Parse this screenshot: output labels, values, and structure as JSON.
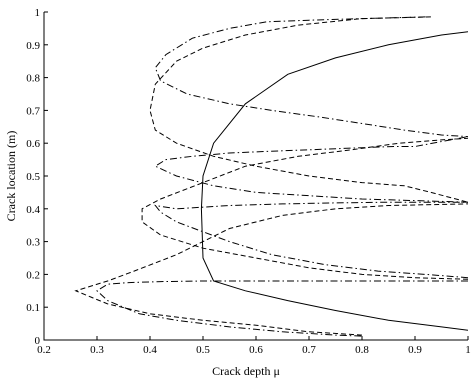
{
  "chart_data": {
    "type": "line",
    "xlabel": "Crack depth  μ",
    "ylabel": "Crack location (m)",
    "xlim": [
      0.2,
      1.0
    ],
    "ylim": [
      0,
      1.0
    ],
    "xticks": [
      "0.2",
      "0.3",
      "0.4",
      "0.5",
      "0.6",
      "0.7",
      "0.8",
      "0.9",
      "1"
    ],
    "xtick_values": [
      0.2,
      0.3,
      0.4,
      0.5,
      0.6,
      0.7,
      0.8,
      0.9,
      1.0
    ],
    "yticks": [
      "0",
      "0.1",
      "0.2",
      "0.3",
      "0.4",
      "0.5",
      "0.6",
      "0.7",
      "0.8",
      "0.9",
      "1"
    ],
    "ytick_values": [
      0,
      0.1,
      0.2,
      0.3,
      0.4,
      0.5,
      0.6,
      0.7,
      0.8,
      0.9,
      1.0
    ],
    "grid": false,
    "legend": "none",
    "series": [
      {
        "style": "solid",
        "points": [
          [
            1.0,
            0.03
          ],
          [
            0.95,
            0.04
          ],
          [
            0.85,
            0.06
          ],
          [
            0.75,
            0.09
          ],
          [
            0.66,
            0.12
          ],
          [
            0.58,
            0.15
          ],
          [
            0.52,
            0.18
          ],
          [
            0.5,
            0.25
          ],
          [
            0.497,
            0.4
          ],
          [
            0.5,
            0.5
          ],
          [
            0.52,
            0.6
          ],
          [
            0.58,
            0.72
          ],
          [
            0.66,
            0.81
          ],
          [
            0.75,
            0.86
          ],
          [
            0.85,
            0.9
          ],
          [
            0.95,
            0.93
          ],
          [
            1.0,
            0.94
          ]
        ]
      },
      {
        "style": "dashed",
        "points": [
          [
            0.93,
            0.985
          ],
          [
            0.8,
            0.98
          ],
          [
            0.68,
            0.96
          ],
          [
            0.58,
            0.93
          ],
          [
            0.5,
            0.89
          ],
          [
            0.45,
            0.85
          ],
          [
            0.41,
            0.78
          ],
          [
            0.4,
            0.7
          ],
          [
            0.41,
            0.64
          ],
          [
            0.45,
            0.6
          ],
          [
            0.52,
            0.56
          ],
          [
            0.6,
            0.53
          ],
          [
            0.7,
            0.5
          ],
          [
            0.8,
            0.48
          ],
          [
            0.88,
            0.47
          ],
          [
            0.93,
            0.45
          ],
          [
            1.0,
            0.42
          ]
        ]
      },
      {
        "style": "dashed",
        "points": [
          [
            1.0,
            0.185
          ],
          [
            0.9,
            0.19
          ],
          [
            0.8,
            0.2
          ],
          [
            0.7,
            0.22
          ],
          [
            0.6,
            0.25
          ],
          [
            0.5,
            0.28
          ],
          [
            0.42,
            0.32
          ],
          [
            0.385,
            0.36
          ],
          [
            0.385,
            0.4
          ],
          [
            0.42,
            0.43
          ],
          [
            0.5,
            0.48
          ],
          [
            0.58,
            0.53
          ],
          [
            0.68,
            0.56
          ],
          [
            0.78,
            0.58
          ],
          [
            0.87,
            0.6
          ],
          [
            0.95,
            0.61
          ],
          [
            1.0,
            0.615
          ]
        ]
      },
      {
        "style": "dashed",
        "points": [
          [
            0.8,
            0.015
          ],
          [
            0.7,
            0.025
          ],
          [
            0.6,
            0.045
          ],
          [
            0.5,
            0.06
          ],
          [
            0.4,
            0.08
          ],
          [
            0.32,
            0.11
          ],
          [
            0.29,
            0.13
          ],
          [
            0.26,
            0.15
          ],
          [
            0.29,
            0.165
          ],
          [
            0.32,
            0.18
          ],
          [
            0.37,
            0.21
          ],
          [
            0.45,
            0.26
          ],
          [
            0.5,
            0.3
          ],
          [
            0.55,
            0.34
          ],
          [
            0.65,
            0.38
          ],
          [
            0.75,
            0.4
          ],
          [
            0.85,
            0.41
          ],
          [
            1.0,
            0.415
          ]
        ]
      },
      {
        "style": "dashdot",
        "points": [
          [
            0.92,
            0.985
          ],
          [
            0.8,
            0.98
          ],
          [
            0.7,
            0.975
          ],
          [
            0.62,
            0.97
          ],
          [
            0.55,
            0.95
          ],
          [
            0.48,
            0.92
          ],
          [
            0.43,
            0.87
          ],
          [
            0.41,
            0.83
          ],
          [
            0.42,
            0.79
          ],
          [
            0.47,
            0.75
          ],
          [
            0.55,
            0.72
          ],
          [
            0.63,
            0.7
          ],
          [
            0.72,
            0.68
          ],
          [
            0.8,
            0.66
          ],
          [
            0.88,
            0.64
          ],
          [
            0.95,
            0.625
          ],
          [
            1.0,
            0.62
          ]
        ]
      },
      {
        "style": "dashdot",
        "points": [
          [
            1.0,
            0.42
          ],
          [
            0.9,
            0.425
          ],
          [
            0.8,
            0.43
          ],
          [
            0.7,
            0.44
          ],
          [
            0.6,
            0.45
          ],
          [
            0.52,
            0.47
          ],
          [
            0.45,
            0.5
          ],
          [
            0.41,
            0.53
          ],
          [
            0.43,
            0.55
          ],
          [
            0.48,
            0.56
          ],
          [
            0.55,
            0.57
          ],
          [
            0.62,
            0.575
          ],
          [
            0.7,
            0.58
          ],
          [
            0.78,
            0.585
          ],
          [
            0.86,
            0.59
          ],
          [
            0.9,
            0.59
          ],
          [
            1.0,
            0.62
          ]
        ]
      },
      {
        "style": "dashdot",
        "points": [
          [
            1.0,
            0.19
          ],
          [
            0.92,
            0.2
          ],
          [
            0.83,
            0.21
          ],
          [
            0.73,
            0.23
          ],
          [
            0.63,
            0.26
          ],
          [
            0.55,
            0.3
          ],
          [
            0.5,
            0.33
          ],
          [
            0.45,
            0.36
          ],
          [
            0.42,
            0.39
          ],
          [
            0.41,
            0.41
          ],
          [
            0.45,
            0.4
          ],
          [
            0.55,
            0.41
          ],
          [
            0.65,
            0.415
          ],
          [
            0.75,
            0.418
          ],
          [
            0.85,
            0.42
          ],
          [
            1.0,
            0.42
          ]
        ]
      },
      {
        "style": "dashdot",
        "points": [
          [
            1.0,
            0.18
          ],
          [
            0.9,
            0.18
          ],
          [
            0.8,
            0.18
          ],
          [
            0.7,
            0.18
          ],
          [
            0.6,
            0.18
          ],
          [
            0.5,
            0.18
          ],
          [
            0.42,
            0.178
          ],
          [
            0.36,
            0.175
          ],
          [
            0.32,
            0.17
          ],
          [
            0.3,
            0.15
          ],
          [
            0.32,
            0.12
          ],
          [
            0.38,
            0.08
          ],
          [
            0.45,
            0.06
          ],
          [
            0.55,
            0.04
          ],
          [
            0.65,
            0.025
          ],
          [
            0.75,
            0.015
          ],
          [
            0.8,
            0.012
          ]
        ]
      }
    ]
  }
}
